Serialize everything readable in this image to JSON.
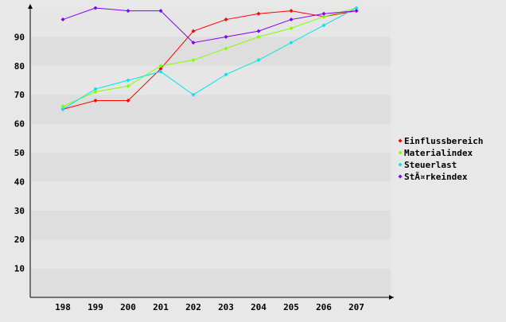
{
  "chart_data": {
    "type": "line",
    "title": "",
    "xlabel": "",
    "ylabel": "",
    "categories": [
      "198",
      "199",
      "200",
      "201",
      "202",
      "203",
      "204",
      "205",
      "206",
      "207"
    ],
    "ylim": [
      0,
      100
    ],
    "yticks": [
      10,
      20,
      30,
      40,
      50,
      60,
      70,
      80,
      90
    ],
    "grid": "alternating horizontal bands",
    "legend_position": "right",
    "series": [
      {
        "name": "Einflussbereich",
        "color": "#ff0000",
        "values": [
          65,
          68,
          68,
          79,
          92,
          96,
          98,
          99,
          97,
          99
        ]
      },
      {
        "name": "Materialindex",
        "color": "#80ff00",
        "values": [
          66,
          71,
          73,
          80,
          82,
          86,
          90,
          93,
          97,
          100
        ]
      },
      {
        "name": "Steuerlast",
        "color": "#00e5ee",
        "values": [
          65,
          72,
          75,
          78,
          70,
          77,
          82,
          88,
          94,
          100
        ]
      },
      {
        "name": "StÃ¤rkeindex",
        "color": "#8000ff",
        "values": [
          96,
          100,
          99,
          99,
          88,
          90,
          92,
          96,
          98,
          99
        ]
      }
    ]
  }
}
